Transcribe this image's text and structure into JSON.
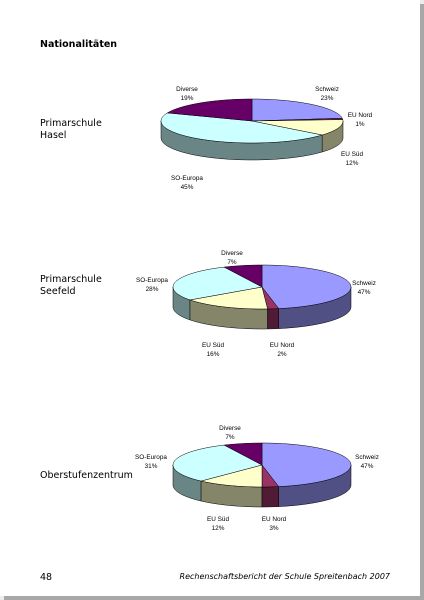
{
  "heading": "Nationalitäten",
  "sections": [
    {
      "label_line1": "Primarschule",
      "label_line2": "Hasel"
    },
    {
      "label_line1": "Primarschule",
      "label_line2": "Seefeld"
    },
    {
      "label_line1": "Oberstufenzentrum",
      "label_line2": ""
    }
  ],
  "footer": {
    "page_number": "48",
    "text": "Rechenschaftsbericht der Schule Spreitenbach 2007"
  },
  "chart_data": [
    {
      "type": "pie",
      "style": "3d",
      "title": "",
      "slices": [
        {
          "name": "Schweiz",
          "value": 23,
          "label": "23%",
          "color": "#9999ff"
        },
        {
          "name": "EU Nord",
          "value": 1,
          "label": "1%",
          "color": "#993366"
        },
        {
          "name": "EU Süd",
          "value": 12,
          "label": "12%",
          "color": "#ffffcc"
        },
        {
          "name": "SO-Europa",
          "value": 45,
          "label": "45%",
          "color": "#ccffff"
        },
        {
          "name": "Diverse",
          "value": 19,
          "label": "19%",
          "color": "#660066"
        }
      ]
    },
    {
      "type": "pie",
      "style": "3d",
      "title": "",
      "slices": [
        {
          "name": "Schweiz",
          "value": 47,
          "label": "47%",
          "color": "#9999ff"
        },
        {
          "name": "EU Nord",
          "value": 2,
          "label": "2%",
          "color": "#993366"
        },
        {
          "name": "EU Süd",
          "value": 16,
          "label": "16%",
          "color": "#ffffcc"
        },
        {
          "name": "SO-Europa",
          "value": 28,
          "label": "28%",
          "color": "#ccffff"
        },
        {
          "name": "Diverse",
          "value": 7,
          "label": "7%",
          "color": "#660066"
        }
      ]
    },
    {
      "type": "pie",
      "style": "3d",
      "title": "",
      "slices": [
        {
          "name": "Schweiz",
          "value": 47,
          "label": "47%",
          "color": "#9999ff"
        },
        {
          "name": "EU Nord",
          "value": 3,
          "label": "3%",
          "color": "#993366"
        },
        {
          "name": "EU Süd",
          "value": 12,
          "label": "12%",
          "color": "#ffffcc"
        },
        {
          "name": "SO-Europa",
          "value": 31,
          "label": "31%",
          "color": "#ccffff"
        },
        {
          "name": "Diverse",
          "value": 7,
          "label": "7%",
          "color": "#660066"
        }
      ]
    }
  ]
}
